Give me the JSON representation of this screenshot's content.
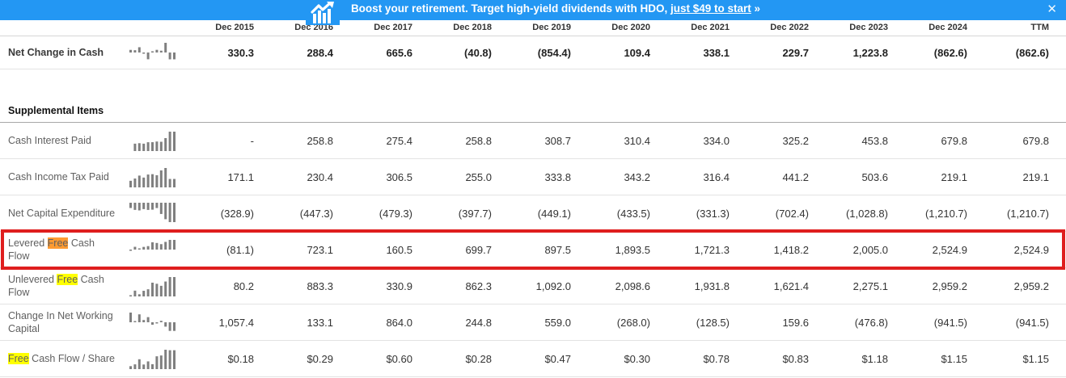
{
  "banner": {
    "text_main": "Boost your retirement. Target high-yield dividends with HDO,",
    "link_text": "just $49 to start",
    "arrow_suffix": "»",
    "close_glyph": "✕",
    "bg_color": "#2397f3",
    "icon_name": "chart-trending-up-icon"
  },
  "table": {
    "columns": [
      "Dec 2015",
      "Dec 2016",
      "Dec 2017",
      "Dec 2018",
      "Dec 2019",
      "Dec 2020",
      "Dec 2021",
      "Dec 2022",
      "Dec 2023",
      "Dec 2024",
      "TTM"
    ],
    "highlight_colors": {
      "match": "#ffff00",
      "active_match": "#ff9b32"
    },
    "red_box_color": "#df1e1e",
    "rows": [
      {
        "id": "net-change-in-cash",
        "emphasis": true,
        "first": true,
        "label_parts": [
          {
            "text": "Net Change in Cash"
          }
        ],
        "values": [
          "330.3",
          "288.4",
          "665.6",
          "(40.8)",
          "(854.4)",
          "109.4",
          "338.1",
          "229.7",
          "1,223.8",
          "(862.6)",
          "(862.6)"
        ]
      },
      {
        "id": "supplemental-items",
        "section_header": true,
        "label": "Supplemental Items"
      },
      {
        "id": "cash-interest-paid",
        "label_parts": [
          {
            "text": "Cash Interest Paid"
          }
        ],
        "values": [
          "-",
          "258.8",
          "275.4",
          "258.8",
          "308.7",
          "310.4",
          "334.0",
          "325.2",
          "453.8",
          "679.8",
          "679.8"
        ]
      },
      {
        "id": "cash-income-tax-paid",
        "label_parts": [
          {
            "text": "Cash Income Tax Paid"
          }
        ],
        "values": [
          "171.1",
          "230.4",
          "306.5",
          "255.0",
          "333.8",
          "343.2",
          "316.4",
          "441.2",
          "503.6",
          "219.1",
          "219.1"
        ]
      },
      {
        "id": "net-capital-expenditure",
        "label_parts": [
          {
            "text": "Net Capital Expenditure"
          }
        ],
        "values": [
          "(328.9)",
          "(447.3)",
          "(479.3)",
          "(397.7)",
          "(449.1)",
          "(433.5)",
          "(331.3)",
          "(702.4)",
          "(1,028.8)",
          "(1,210.7)",
          "(1,210.7)"
        ]
      },
      {
        "id": "levered-free-cash-flow",
        "red_box": true,
        "label_parts": [
          {
            "text": "Levered "
          },
          {
            "text": "Free",
            "highlight": "active_match"
          },
          {
            "text": " Cash Flow"
          }
        ],
        "values": [
          "(81.1)",
          "723.1",
          "160.5",
          "699.7",
          "897.5",
          "1,893.5",
          "1,721.3",
          "1,418.2",
          "2,005.0",
          "2,524.9",
          "2,524.9"
        ]
      },
      {
        "id": "unlevered-free-cash-flow",
        "label_parts": [
          {
            "text": "Unlevered "
          },
          {
            "text": "Free",
            "highlight": "match"
          },
          {
            "text": " Cash Flow"
          }
        ],
        "values": [
          "80.2",
          "883.3",
          "330.9",
          "862.3",
          "1,092.0",
          "2,098.6",
          "1,931.8",
          "1,621.4",
          "2,275.1",
          "2,959.2",
          "2,959.2"
        ]
      },
      {
        "id": "change-in-net-working-capital",
        "label_parts": [
          {
            "text": "Change In Net Working Capital"
          }
        ],
        "values": [
          "1,057.4",
          "133.1",
          "864.0",
          "244.8",
          "559.0",
          "(268.0)",
          "(128.5)",
          "159.6",
          "(476.8)",
          "(941.5)",
          "(941.5)"
        ]
      },
      {
        "id": "free-cash-flow-per-share",
        "label_parts": [
          {
            "text": "Free",
            "highlight": "match"
          },
          {
            "text": " Cash Flow / Share"
          }
        ],
        "values": [
          "$0.18",
          "$0.29",
          "$0.60",
          "$0.28",
          "$0.47",
          "$0.30",
          "$0.78",
          "$0.83",
          "$1.18",
          "$1.15",
          "$1.15"
        ]
      }
    ]
  }
}
